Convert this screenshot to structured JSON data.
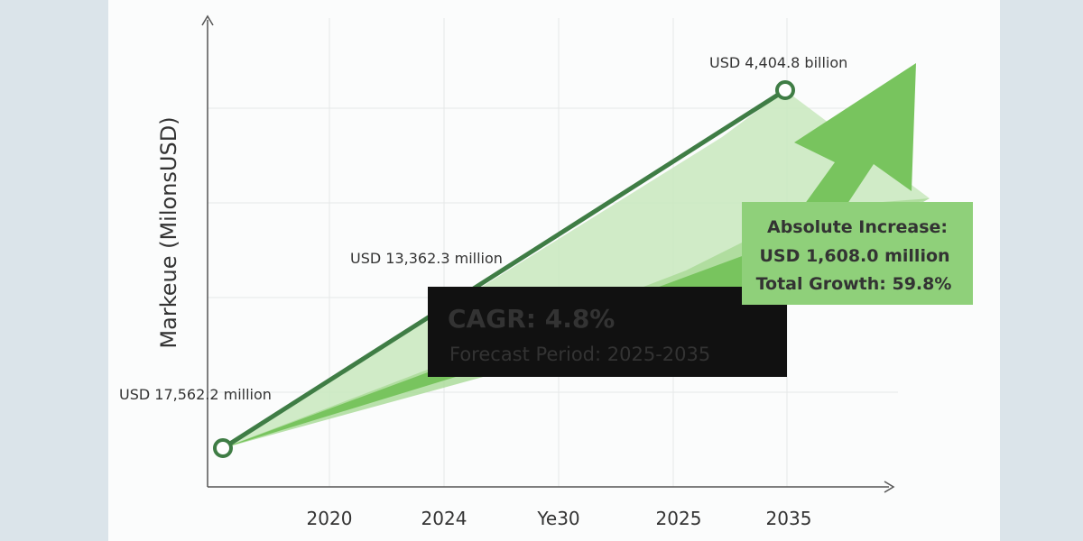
{
  "chart_data": {
    "type": "line",
    "ylabel": "Markeue (MilonsUSD)",
    "xlabel": "",
    "categories": [
      "2020",
      "2024",
      "Ye30",
      "2025",
      "2035"
    ],
    "series": [
      {
        "values": [
          {
            "label": "USD 17,562.2 million"
          },
          {
            "label": "USD 13,362.3 million"
          },
          {
            "label": "USD 4,404.8 billion"
          }
        ]
      }
    ],
    "grid": true,
    "annotations": {
      "cagr_title": "CAGR: 4.8%",
      "forecast": "Forecast Period: 2025-2035",
      "increase_line1": "Absolute Increase:",
      "increase_line2": "USD 1,608.0 million",
      "increase_line3": "Total Growth: 59.8%"
    },
    "colors": {
      "line": "#3f7d45",
      "arrow": "#74c25a",
      "arrow_light": "#a8d99a",
      "callout": "#8fd07a",
      "cagr_box": "#111111"
    }
  }
}
